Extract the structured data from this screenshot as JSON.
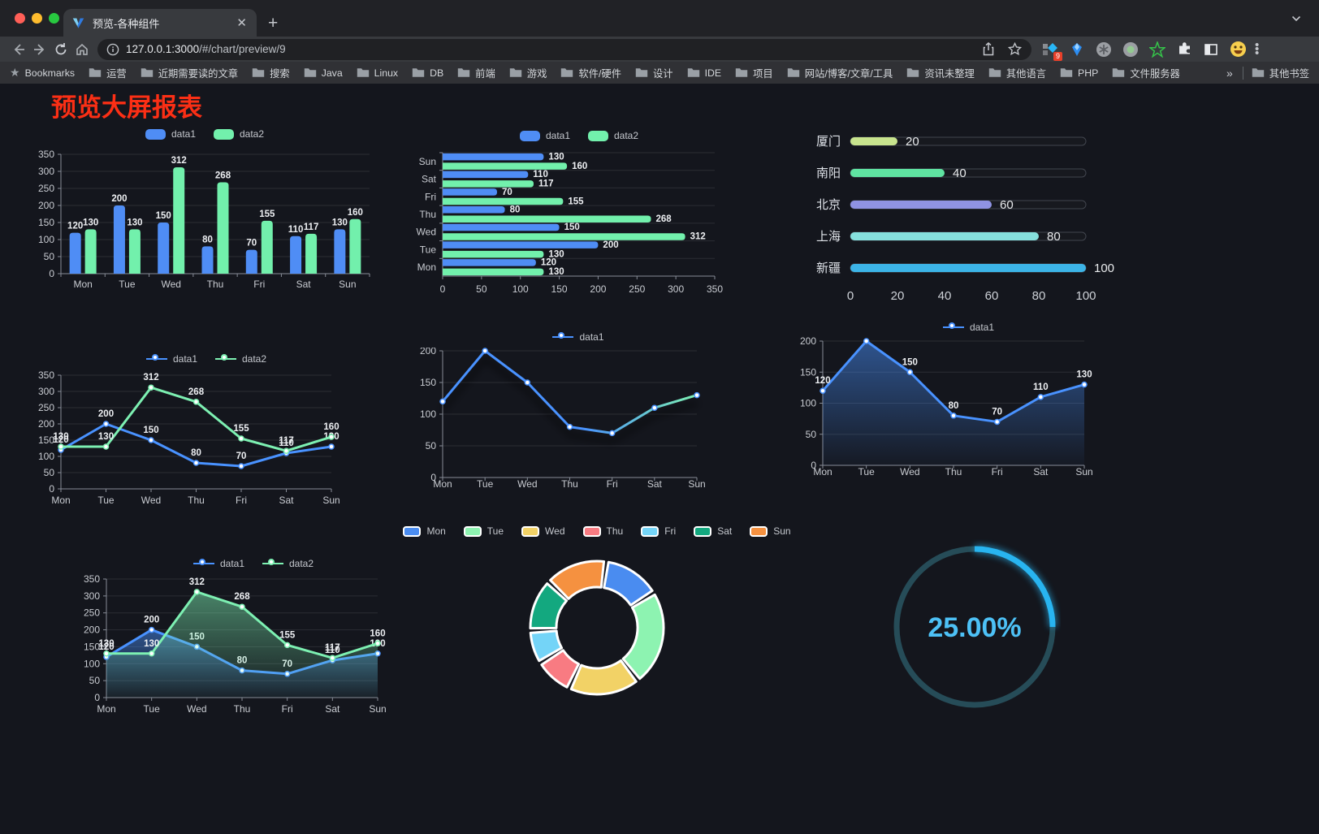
{
  "browser": {
    "tab": {
      "title": "预览-各种组件"
    },
    "url": {
      "host": "127.0.0.1:3000",
      "path": "/#/chart/preview/9"
    },
    "bookmarks_label": "Bookmarks",
    "bookmarks": [
      "运营",
      "近期需要读的文章",
      "搜索",
      "Java",
      "Linux",
      "DB",
      "前端",
      "游戏",
      "软件/硬件",
      "设计",
      "IDE",
      "项目",
      "网站/博客/文章/工具",
      "资讯未整理",
      "其他语言",
      "PHP",
      "文件服务器"
    ],
    "overflow_chevron": "»",
    "other_bookmarks": "其他书签",
    "extension_badge": "9",
    "extension_icons": [
      "grid-diamond-badge",
      "blue-gem",
      "snowflake-circle",
      "record-circle",
      "green-star",
      "puzzle",
      "side-panel",
      "emoji-face"
    ]
  },
  "page": {
    "title": "预览大屏报表"
  },
  "chart_data": [
    {
      "id": "bar-grouped",
      "type": "bar",
      "categories": [
        "Mon",
        "Tue",
        "Wed",
        "Thu",
        "Fri",
        "Sat",
        "Sun"
      ],
      "series": [
        {
          "name": "data1",
          "color": "#4f8df5",
          "values": [
            120,
            200,
            150,
            80,
            70,
            110,
            130
          ]
        },
        {
          "name": "data2",
          "color": "#72f0ac",
          "values": [
            130,
            130,
            312,
            268,
            155,
            117,
            160
          ]
        }
      ],
      "ylim": [
        0,
        350
      ],
      "ystep": 50,
      "value_labels": true,
      "legend_position": "top",
      "grid": true
    },
    {
      "id": "bar-horizontal",
      "type": "hbar",
      "categories": [
        "Sun",
        "Sat",
        "Fri",
        "Thu",
        "Wed",
        "Tue",
        "Mon"
      ],
      "series": [
        {
          "name": "data1",
          "color": "#4f8df5",
          "values": [
            130,
            110,
            70,
            80,
            150,
            200,
            120
          ]
        },
        {
          "name": "data2",
          "color": "#72f0ac",
          "values": [
            160,
            117,
            155,
            268,
            312,
            130,
            130
          ]
        }
      ],
      "xlim": [
        0,
        350
      ],
      "xstep": 50,
      "value_labels": true,
      "legend_position": "top",
      "grid": true
    },
    {
      "id": "progress-bars",
      "type": "progress",
      "max": 100,
      "xticks": [
        0,
        20,
        40,
        60,
        80,
        100
      ],
      "rows": [
        {
          "label": "厦门",
          "value": 20,
          "color": "#c8e48e"
        },
        {
          "label": "南阳",
          "value": 40,
          "color": "#5fe3a1"
        },
        {
          "label": "北京",
          "value": 60,
          "color": "#8f93e3"
        },
        {
          "label": "上海",
          "value": 80,
          "color": "#86e0dd"
        },
        {
          "label": "新疆",
          "value": 100,
          "color": "#3cb4e7"
        }
      ]
    },
    {
      "id": "line-dual",
      "type": "line",
      "categories": [
        "Mon",
        "Tue",
        "Wed",
        "Thu",
        "Fri",
        "Sat",
        "Sun"
      ],
      "series": [
        {
          "name": "data1",
          "color": "#4992ff",
          "values": [
            120,
            200,
            150,
            80,
            70,
            110,
            130
          ],
          "labels": true
        },
        {
          "name": "data2",
          "color": "#7df0b2",
          "values": [
            130,
            130,
            312,
            268,
            155,
            117,
            160
          ],
          "labels": true
        }
      ],
      "ylim": [
        0,
        350
      ],
      "ystep": 50,
      "legend_position": "top",
      "grid": true
    },
    {
      "id": "line-gradient",
      "type": "line",
      "categories": [
        "Mon",
        "Tue",
        "Wed",
        "Thu",
        "Fri",
        "Sat",
        "Sun"
      ],
      "series": [
        {
          "name": "data1",
          "color": "#4992ff",
          "color_end": "#7df0b2",
          "gradient": true,
          "shadow": true,
          "values": [
            120,
            200,
            150,
            80,
            70,
            110,
            130
          ],
          "labels": false
        }
      ],
      "ylim": [
        0,
        200
      ],
      "ystep": 50,
      "legend_position": "top",
      "grid": true
    },
    {
      "id": "line-area",
      "type": "line",
      "categories": [
        "Mon",
        "Tue",
        "Wed",
        "Thu",
        "Fri",
        "Sat",
        "Sun"
      ],
      "series": [
        {
          "name": "data1",
          "color": "#4992ff",
          "area": true,
          "values": [
            120,
            200,
            150,
            80,
            70,
            110,
            130
          ],
          "labels": true
        }
      ],
      "ylim": [
        0,
        200
      ],
      "ystep": 50,
      "legend_position": "top",
      "grid": true
    },
    {
      "id": "line-area-dual",
      "type": "line",
      "categories": [
        "Mon",
        "Tue",
        "Wed",
        "Thu",
        "Fri",
        "Sat",
        "Sun"
      ],
      "series": [
        {
          "name": "data1",
          "color": "#4992ff",
          "area": true,
          "values": [
            120,
            200,
            150,
            80,
            70,
            110,
            130
          ],
          "labels": true
        },
        {
          "name": "data2",
          "color": "#7df0b2",
          "area": true,
          "values": [
            130,
            130,
            312,
            268,
            155,
            117,
            160
          ],
          "labels": true
        }
      ],
      "ylim": [
        0,
        350
      ],
      "ystep": 50,
      "legend_position": "top",
      "grid": true
    },
    {
      "id": "donut",
      "type": "donut",
      "legend_position": "top",
      "start_angle": -82,
      "pad_angle": 4,
      "inner_radius_ratio": 0.61,
      "items": [
        {
          "label": "Mon",
          "value": 120,
          "color": "#4a8cf0"
        },
        {
          "label": "Tue",
          "value": 200,
          "color": "#8df3b1"
        },
        {
          "label": "Wed",
          "value": 150,
          "color": "#f2d266"
        },
        {
          "label": "Thu",
          "value": 80,
          "color": "#f87b82"
        },
        {
          "label": "Fri",
          "value": 70,
          "color": "#74d4f7"
        },
        {
          "label": "Sat",
          "value": 110,
          "color": "#13a87f"
        },
        {
          "label": "Sun",
          "value": 130,
          "color": "#f59140"
        }
      ]
    },
    {
      "id": "gauge",
      "type": "gauge",
      "value": 25,
      "display": "25.00%",
      "color": "#28b4f0",
      "track_color": "#264c58",
      "text_color": "#4dc1f6"
    }
  ]
}
